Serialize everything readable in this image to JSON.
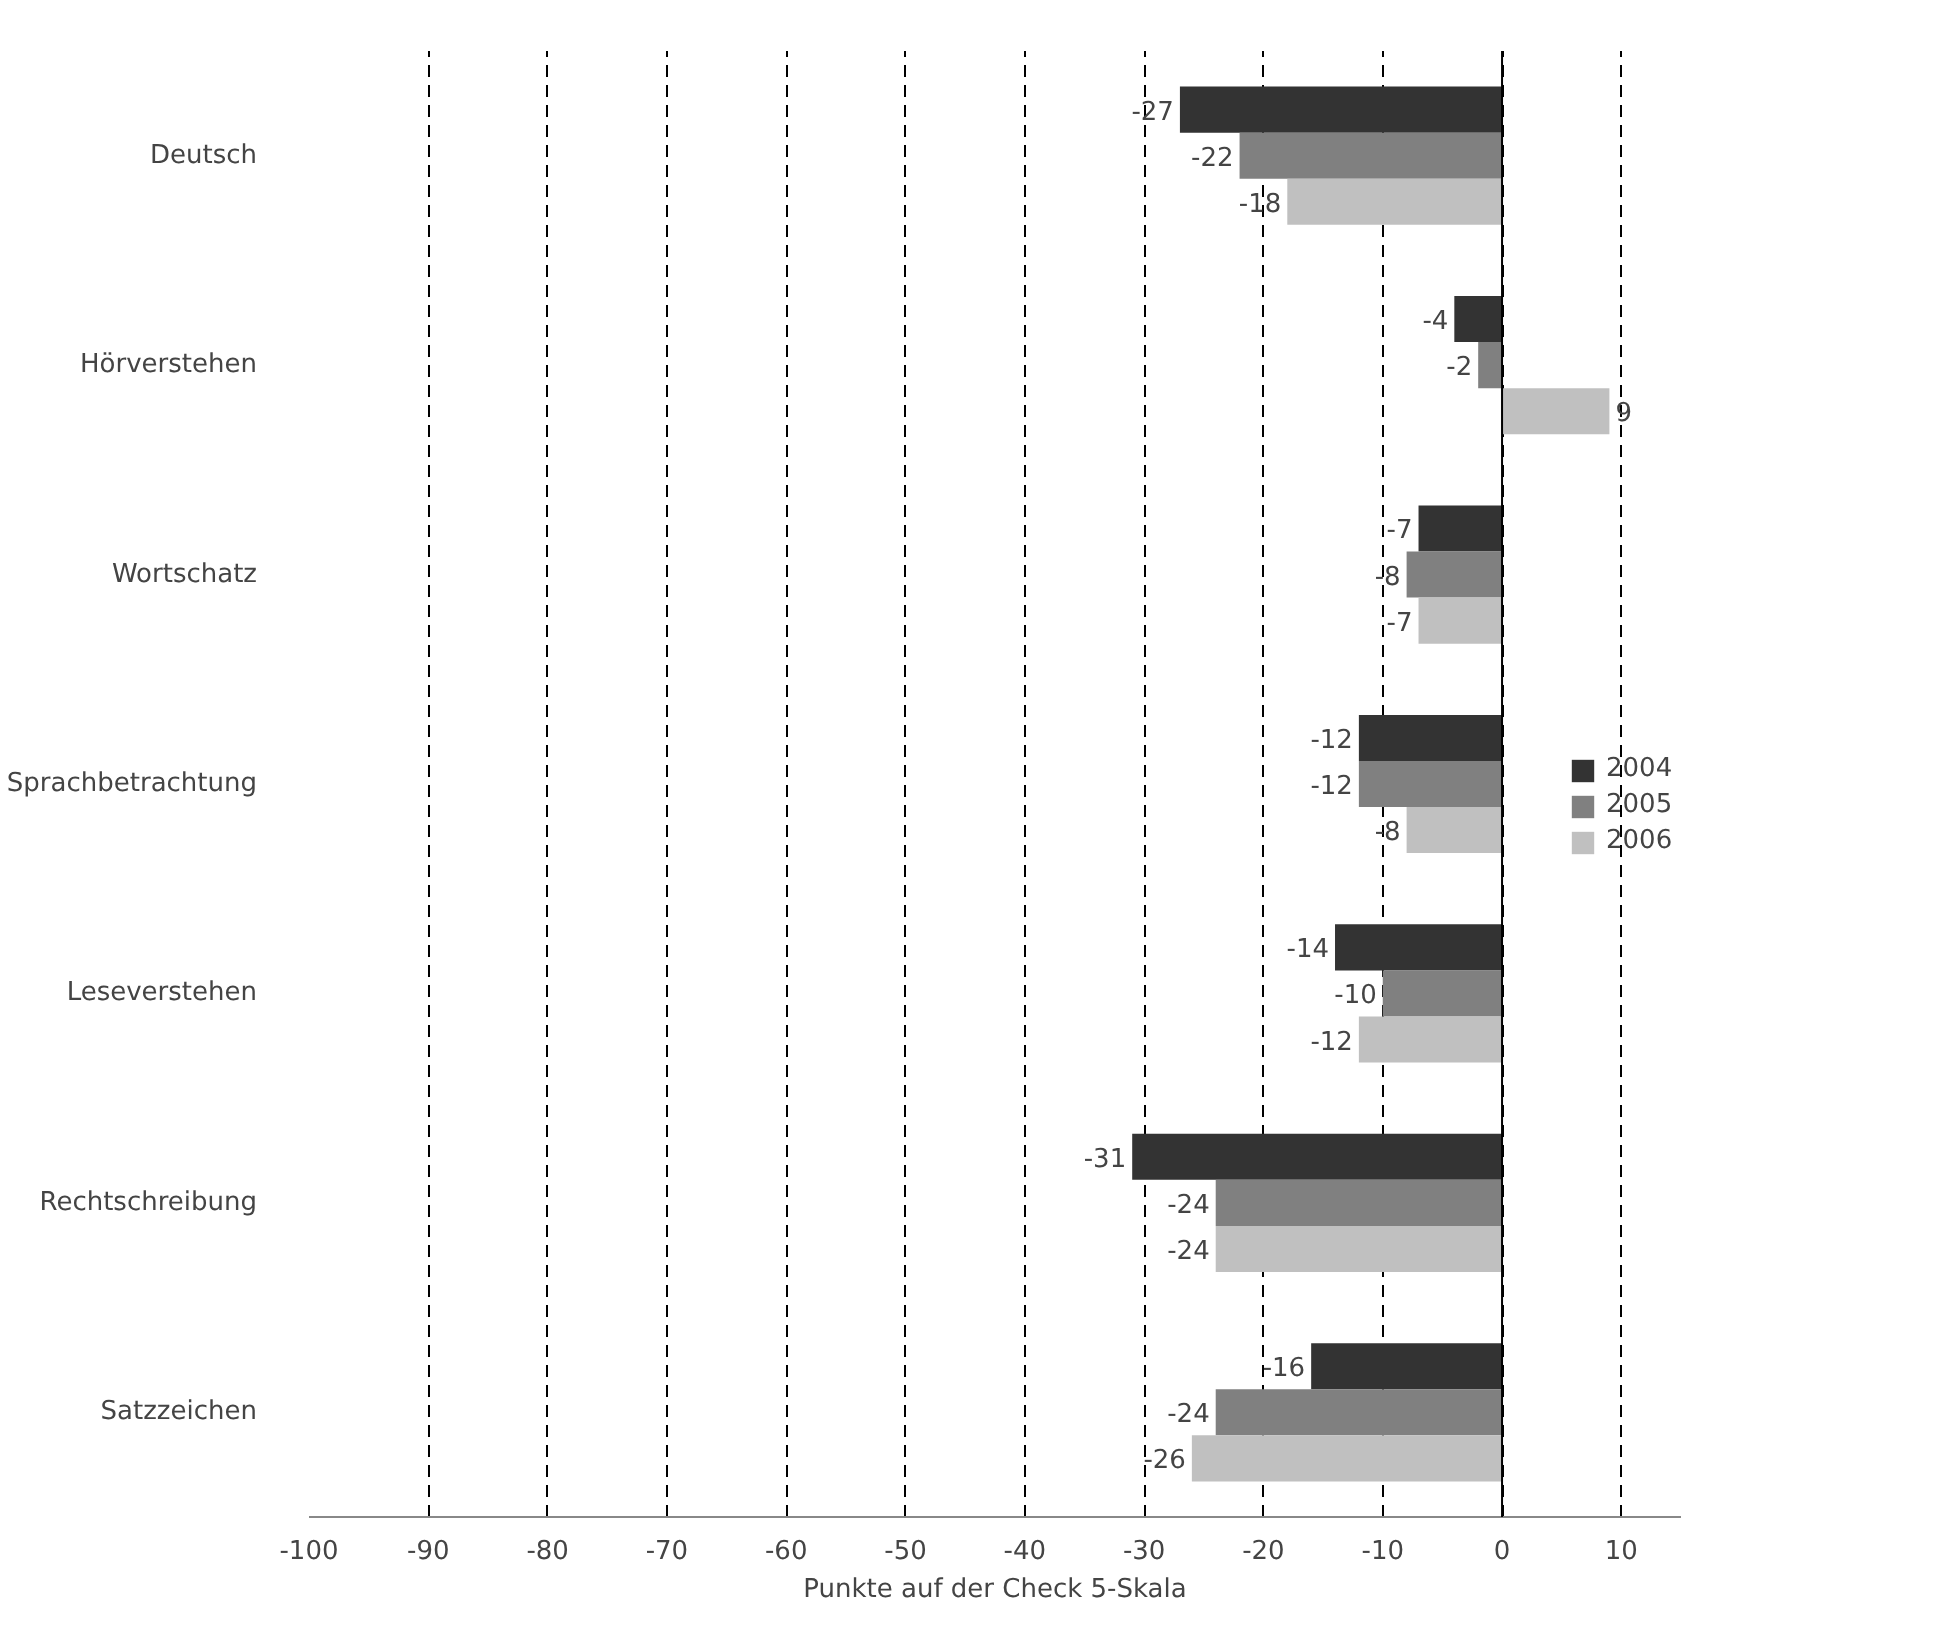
{
  "chart_data": {
    "type": "bar",
    "orientation": "horizontal",
    "xlabel": "Punkte auf der Check 5-Skala",
    "categories": [
      "Deutsch",
      "Hörverstehen",
      "Wortschatz",
      "Sprachbetrachtung",
      "Leseverstehen",
      "Rechtschreibung",
      "Satzzeichen"
    ],
    "series": [
      {
        "name": "2004",
        "color": "#333333",
        "values": [
          -27,
          -4,
          -7,
          -12,
          -14,
          -31,
          -16
        ]
      },
      {
        "name": "2005",
        "color": "#808080",
        "values": [
          -22,
          -2,
          -8,
          -12,
          -10,
          -24,
          -24
        ]
      },
      {
        "name": "2006",
        "color": "#c0c0c0",
        "values": [
          -18,
          9,
          -7,
          -8,
          -12,
          -24,
          -26
        ]
      }
    ],
    "xlim": [
      -100,
      15
    ],
    "xticks": [
      -100,
      -90,
      -80,
      -70,
      -60,
      -50,
      -40,
      -30,
      -20,
      -10,
      0,
      10
    ],
    "grid": "x",
    "legend": "right",
    "data_labels": true
  }
}
